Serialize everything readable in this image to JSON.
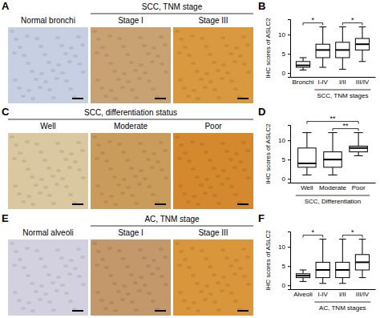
{
  "image_panels": [
    {
      "label": "A",
      "group": {
        "text": "SCC, TNM stage",
        "from": 1,
        "to": 2
      },
      "images": [
        {
          "caption": "Normal bronchi",
          "color": "#c7cfe3"
        },
        {
          "caption": "Stage I",
          "color": "#c8a273"
        },
        {
          "caption": "Stage III",
          "color": "#d9993f"
        }
      ]
    },
    {
      "label": "C",
      "group": {
        "text": "SCC, differentiation status",
        "from": 0,
        "to": 2
      },
      "images": [
        {
          "caption": "Well",
          "color": "#d9c8a0"
        },
        {
          "caption": "Moderate",
          "color": "#c99c5c"
        },
        {
          "caption": "Poor",
          "color": "#d4892f"
        }
      ]
    },
    {
      "label": "E",
      "group": {
        "text": "AC, TNM stage",
        "from": 1,
        "to": 2
      },
      "images": [
        {
          "caption": "Normal alveoli",
          "color": "#d3d0e0"
        },
        {
          "caption": "Stage I",
          "color": "#c3986a"
        },
        {
          "caption": "Stage III",
          "color": "#da963b"
        }
      ]
    }
  ],
  "chart_data": [
    {
      "type": "box",
      "panel_label": "B",
      "ylabel": "IHC scores of ASLC2",
      "categories": [
        "Bronchi",
        "I-IV",
        "I/II",
        "III/IV"
      ],
      "xgroup": {
        "text": "SCC, TNM stages",
        "from": 1,
        "to": 3
      },
      "min": [
        0.8,
        1.5,
        1,
        3
      ],
      "q1": [
        1.5,
        4,
        4,
        6
      ],
      "median": [
        2,
        6,
        6,
        7.5
      ],
      "q3": [
        3,
        7.5,
        8,
        9
      ],
      "max": [
        4,
        12,
        12,
        12
      ],
      "ylim": [
        -1,
        14
      ],
      "yticks": [
        0,
        5,
        10
      ],
      "color": "#ffffff",
      "annotations": [
        {
          "text": "*",
          "from": 0,
          "to": 1
        },
        {
          "text": "*",
          "from": 2,
          "to": 3
        }
      ]
    },
    {
      "type": "box",
      "panel_label": "D",
      "ylabel": "IHC scores of ASLC2",
      "categories": [
        "Well",
        "Moderate",
        "Poor"
      ],
      "xgroup": {
        "text": "SCC, Differentiation",
        "from": 0,
        "to": 2
      },
      "min": [
        1,
        1,
        6
      ],
      "q1": [
        3,
        3,
        7
      ],
      "median": [
        4,
        5,
        8
      ],
      "q3": [
        8,
        7,
        8.5
      ],
      "max": [
        12,
        12,
        12
      ],
      "ylim": [
        -1,
        14
      ],
      "yticks": [
        0,
        5,
        10
      ],
      "color": "#ffffff",
      "annotations": [
        {
          "text": "**",
          "from": 1,
          "to": 2
        },
        {
          "text": "**",
          "from": 0,
          "to": 2
        }
      ]
    },
    {
      "type": "box",
      "panel_label": "F",
      "ylabel": "IHC scores of ASLC2",
      "categories": [
        "Alveoli",
        "I-IV",
        "I/II",
        "III/IV"
      ],
      "xgroup": {
        "text": "AC, TNM stages",
        "from": 1,
        "to": 3
      },
      "min": [
        1,
        0.5,
        0.5,
        2
      ],
      "q1": [
        2,
        2,
        2,
        4
      ],
      "median": [
        2.5,
        4,
        4,
        6
      ],
      "q3": [
        3,
        6,
        6,
        8
      ],
      "max": [
        4,
        12,
        12,
        12
      ],
      "ylim": [
        -1,
        14
      ],
      "yticks": [
        0,
        5,
        10
      ],
      "color": "#ffffff",
      "annotations": [
        {
          "text": "*",
          "from": 0,
          "to": 1
        },
        {
          "text": "*",
          "from": 2,
          "to": 3
        }
      ]
    }
  ]
}
